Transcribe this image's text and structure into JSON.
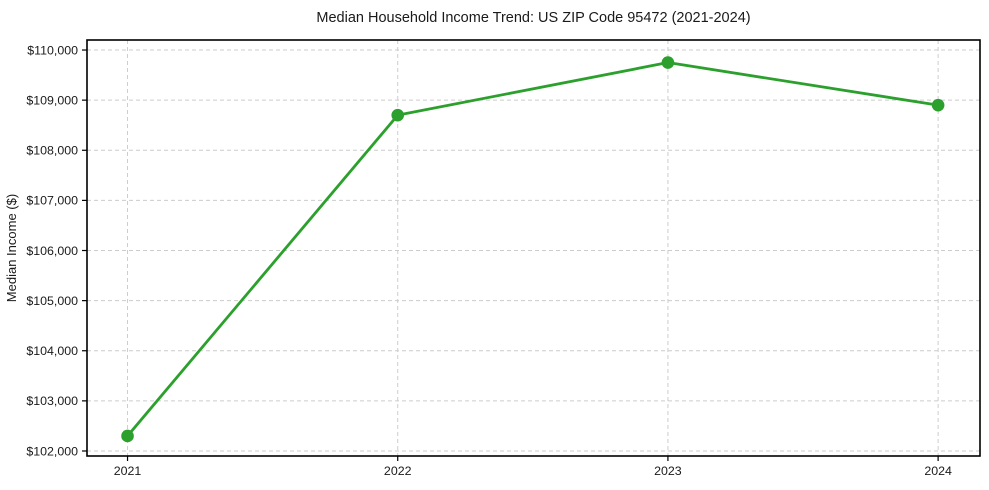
{
  "chart_data": {
    "type": "line",
    "title": "Median Household Income Trend: US ZIP Code 95472 (2021-2024)",
    "xlabel": "",
    "ylabel": "Median Income ($)",
    "x": [
      2021,
      2022,
      2023,
      2024
    ],
    "x_tick_labels": [
      "2021",
      "2022",
      "2023",
      "2024"
    ],
    "series": [
      {
        "name": "median_household_income",
        "values": [
          102300,
          108700,
          109750,
          108900
        ]
      }
    ],
    "y_ticks": [
      102000,
      103000,
      104000,
      105000,
      106000,
      107000,
      108000,
      109000,
      110000
    ],
    "y_tick_labels": [
      "$102,000",
      "$103,000",
      "$104,000",
      "$105,000",
      "$106,000",
      "$107,000",
      "$108,000",
      "$109,000",
      "$110,000"
    ],
    "xlim": [
      2020.85,
      2024.155
    ],
    "ylim": [
      101900,
      110200
    ],
    "grid": true,
    "grid_style": "dashed",
    "legend_position": "none",
    "marker": "circle",
    "colors": {
      "line": "#2ca02c",
      "marker": "#2ca02c",
      "grid": "#cccccc",
      "spine": "#000000",
      "tick": "#000000",
      "text": "#1a1a1a",
      "background": "#ffffff"
    }
  }
}
